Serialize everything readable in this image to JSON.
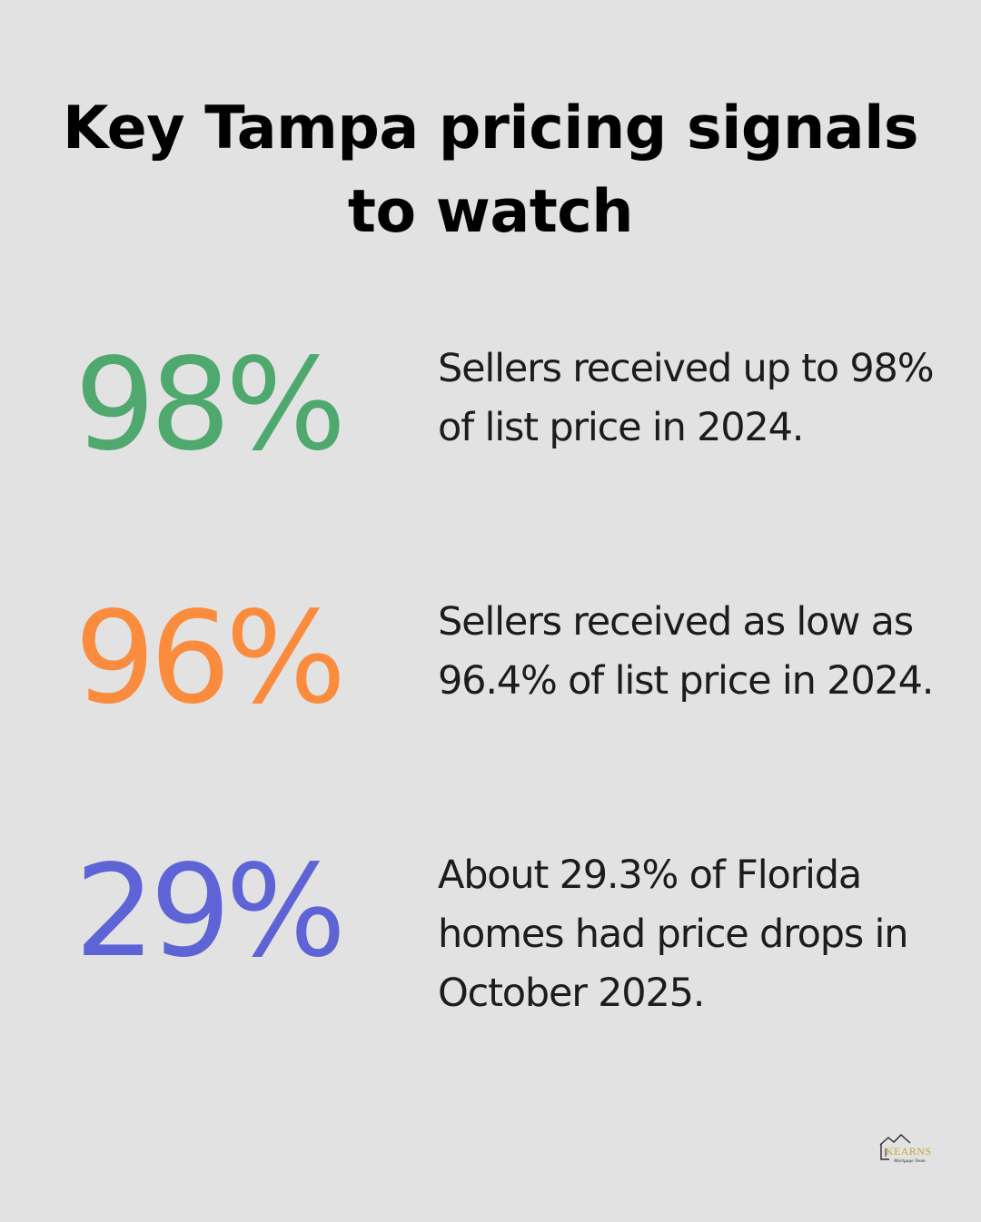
{
  "title": "Key Tampa pricing signals to watch",
  "stats": [
    {
      "value": "98%",
      "description": "Sellers received up to 98% of list price in 2024.",
      "color": "#4fa86e"
    },
    {
      "value": "96%",
      "description": "Sellers received as low as 96.4% of list price in 2024.",
      "color": "#fb8b3d"
    },
    {
      "value": "29%",
      "description": "About 29.3% of Florida homes had price drops in October 2025.",
      "color": "#5e63d5"
    }
  ],
  "logo": {
    "brand": "KEARNS",
    "tagline": "Mortgage Team",
    "icon": "house-roof-icon",
    "gold": "#c9a338"
  }
}
